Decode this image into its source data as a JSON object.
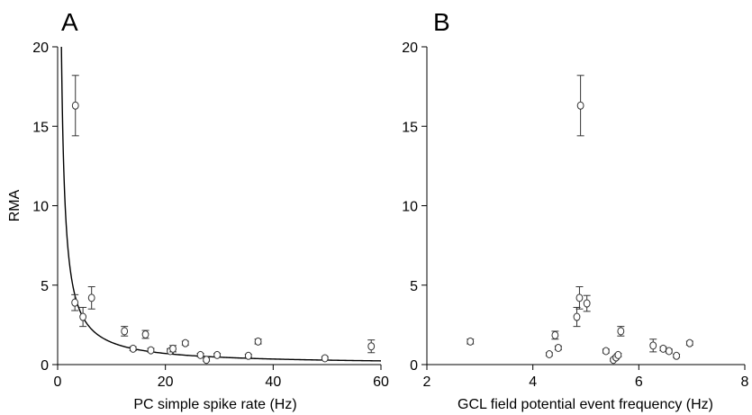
{
  "chart_data": [
    {
      "type": "scatter",
      "panel": "A",
      "xlabel": "PC simple spike rate (Hz)",
      "ylabel": "RMA",
      "xlim": [
        0,
        60
      ],
      "ylim": [
        0,
        20
      ],
      "xticks": [
        0,
        20,
        40,
        60
      ],
      "yticks": [
        0,
        5,
        10,
        15,
        20
      ],
      "grid": false,
      "fit_curve": {
        "model": "reciprocal",
        "y_equals_k_over_x": 14
      },
      "points": [
        {
          "x": 3.3,
          "y": 16.3,
          "err": 1.9
        },
        {
          "x": 3.2,
          "y": 3.9,
          "err": 0.5
        },
        {
          "x": 4.7,
          "y": 3.0,
          "err": 0.6
        },
        {
          "x": 6.3,
          "y": 4.2,
          "err": 0.7
        },
        {
          "x": 12.4,
          "y": 2.1,
          "err": 0.3
        },
        {
          "x": 14.0,
          "y": 1.0,
          "err": 0.12
        },
        {
          "x": 16.3,
          "y": 1.9,
          "err": 0.25
        },
        {
          "x": 17.3,
          "y": 0.9,
          "err": 0.12
        },
        {
          "x": 20.9,
          "y": 0.85,
          "err": 0.15
        },
        {
          "x": 21.4,
          "y": 1.0,
          "err": 0.2
        },
        {
          "x": 23.7,
          "y": 1.35,
          "err": 0.12
        },
        {
          "x": 26.5,
          "y": 0.6,
          "err": 0.1
        },
        {
          "x": 27.6,
          "y": 0.3,
          "err": 0.08
        },
        {
          "x": 29.6,
          "y": 0.6,
          "err": 0.1
        },
        {
          "x": 35.4,
          "y": 0.55,
          "err": 0.1
        },
        {
          "x": 37.2,
          "y": 1.45,
          "err": 0.15
        },
        {
          "x": 49.6,
          "y": 0.4,
          "err": 0.1
        },
        {
          "x": 58.2,
          "y": 1.15,
          "err": 0.4
        }
      ]
    },
    {
      "type": "scatter",
      "panel": "B",
      "xlabel": "GCL field potential event frequency (Hz)",
      "ylabel": "",
      "xlim": [
        2,
        8
      ],
      "ylim": [
        0,
        20
      ],
      "xticks": [
        2,
        4,
        6,
        8
      ],
      "yticks": [
        0,
        5,
        10,
        15,
        20
      ],
      "grid": false,
      "points": [
        {
          "x": 2.82,
          "y": 1.45,
          "err": 0.15
        },
        {
          "x": 4.31,
          "y": 0.65,
          "err": 0.1
        },
        {
          "x": 4.42,
          "y": 1.85,
          "err": 0.25
        },
        {
          "x": 4.48,
          "y": 1.05,
          "err": 0.12
        },
        {
          "x": 4.83,
          "y": 3.0,
          "err": 0.6
        },
        {
          "x": 4.88,
          "y": 4.2,
          "err": 0.7
        },
        {
          "x": 4.9,
          "y": 16.3,
          "err": 1.9
        },
        {
          "x": 5.02,
          "y": 3.85,
          "err": 0.5
        },
        {
          "x": 5.38,
          "y": 0.85,
          "err": 0.12
        },
        {
          "x": 5.52,
          "y": 0.3,
          "err": 0.08
        },
        {
          "x": 5.57,
          "y": 0.45,
          "err": 0.1
        },
        {
          "x": 5.61,
          "y": 0.6,
          "err": 0.1
        },
        {
          "x": 5.66,
          "y": 2.1,
          "err": 0.3
        },
        {
          "x": 6.27,
          "y": 1.2,
          "err": 0.4
        },
        {
          "x": 6.46,
          "y": 1.0,
          "err": 0.12
        },
        {
          "x": 6.57,
          "y": 0.85,
          "err": 0.12
        },
        {
          "x": 6.71,
          "y": 0.55,
          "err": 0.1
        },
        {
          "x": 6.96,
          "y": 1.35,
          "err": 0.12
        }
      ]
    }
  ]
}
